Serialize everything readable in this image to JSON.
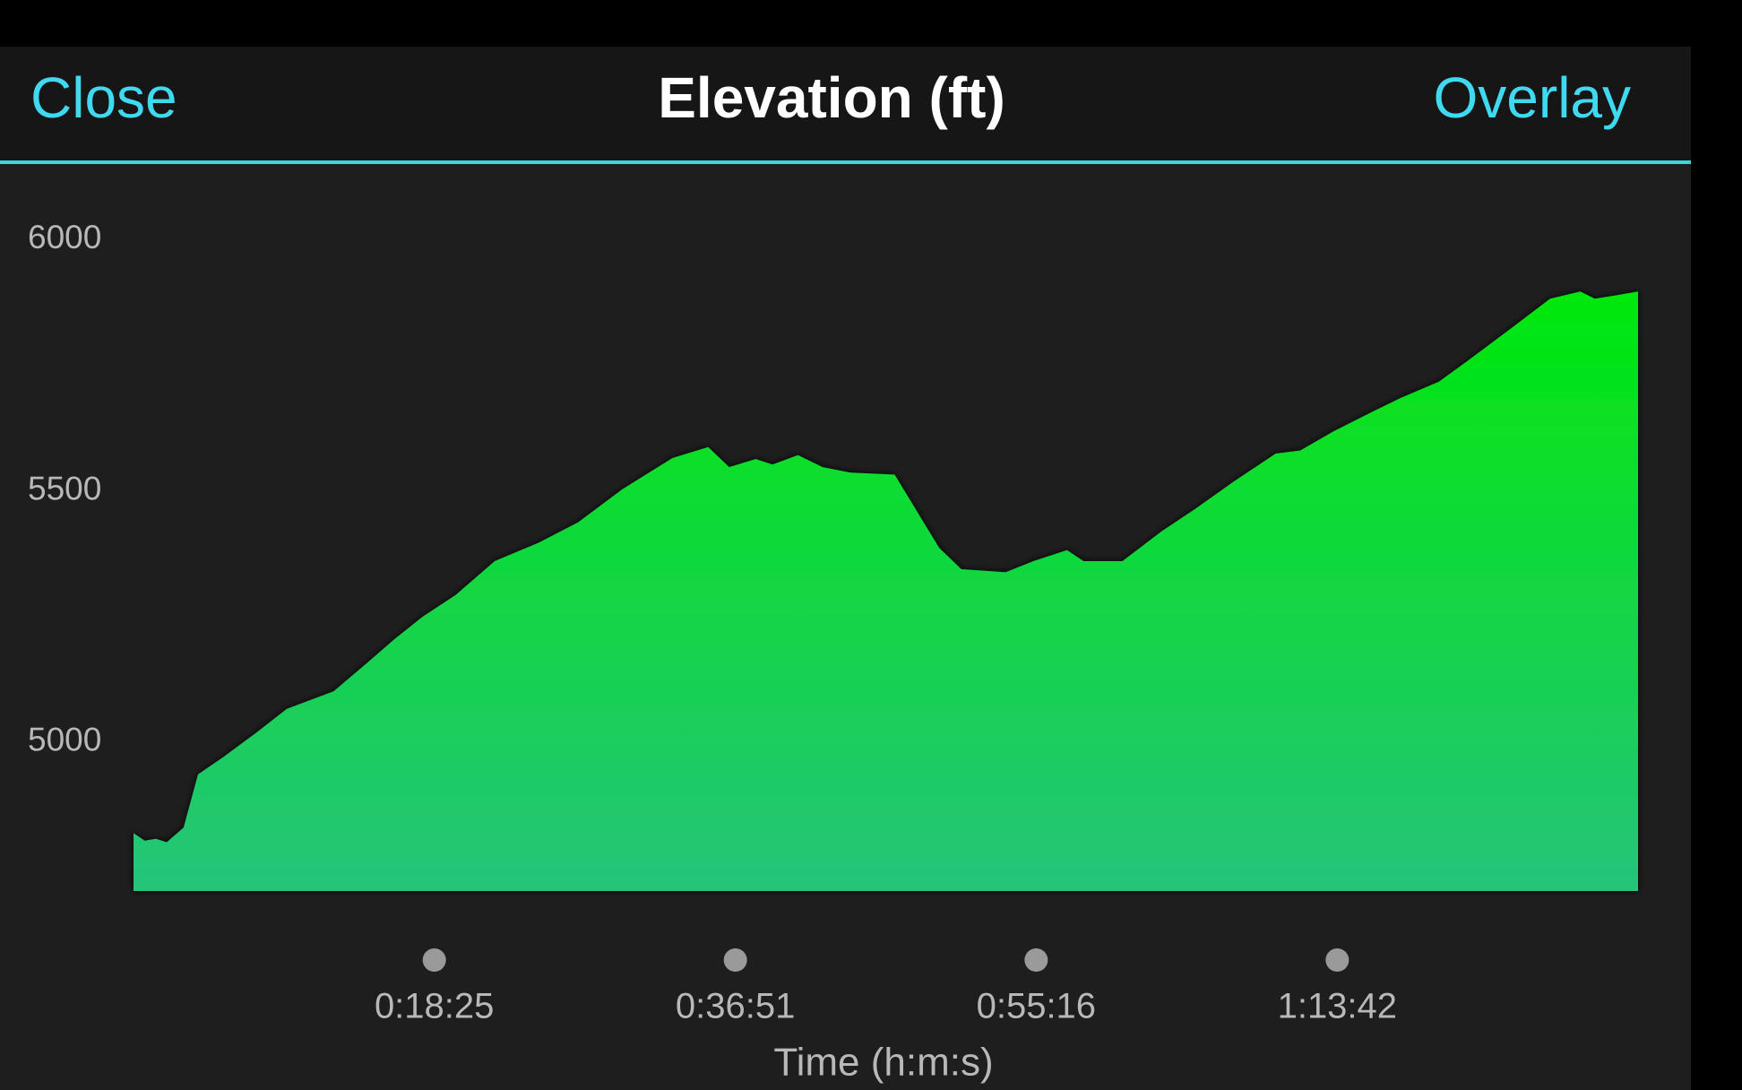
{
  "header": {
    "close": "Close",
    "overlay": "Overlay"
  },
  "chart_data": {
    "type": "area",
    "title": "Elevation (ft)",
    "x_label": "Time (h:m:s)",
    "color": "#00e600",
    "x": [
      0,
      41,
      82,
      122,
      184,
      237,
      327,
      449,
      563,
      735,
      857,
      959,
      1061,
      1184,
      1327,
      1490,
      1633,
      1796,
      1980,
      2111,
      2188,
      2286,
      2347,
      2441,
      2531,
      2633,
      2796,
      2878,
      2960,
      3041,
      3204,
      3306,
      3429,
      3490,
      3633,
      3776,
      3898,
      4041,
      4196,
      4286,
      4408,
      4551,
      4653,
      4796,
      4898,
      5061,
      5204,
      5315,
      5368,
      5429,
      5527
    ],
    "values": [
      4819,
      4804,
      4808,
      4801,
      4830,
      4936,
      4969,
      5018,
      5066,
      5101,
      5157,
      5205,
      5249,
      5293,
      5360,
      5397,
      5437,
      5503,
      5565,
      5587,
      5547,
      5563,
      5552,
      5571,
      5547,
      5536,
      5532,
      5459,
      5386,
      5344,
      5338,
      5360,
      5382,
      5360,
      5360,
      5419,
      5463,
      5518,
      5574,
      5580,
      5618,
      5657,
      5684,
      5717,
      5757,
      5823,
      5882,
      5896,
      5882,
      5887,
      5896
    ],
    "xlim": [
      0,
      5527
    ],
    "xticks": [
      {
        "value": 1105,
        "label": "0:18:25"
      },
      {
        "value": 2211,
        "label": "0:36:51"
      },
      {
        "value": 3316,
        "label": "0:55:16"
      },
      {
        "value": 4422,
        "label": "1:13:42"
      }
    ],
    "ylim": [
      4704,
      6000
    ],
    "yticks": [
      5000,
      5500,
      6000
    ]
  }
}
